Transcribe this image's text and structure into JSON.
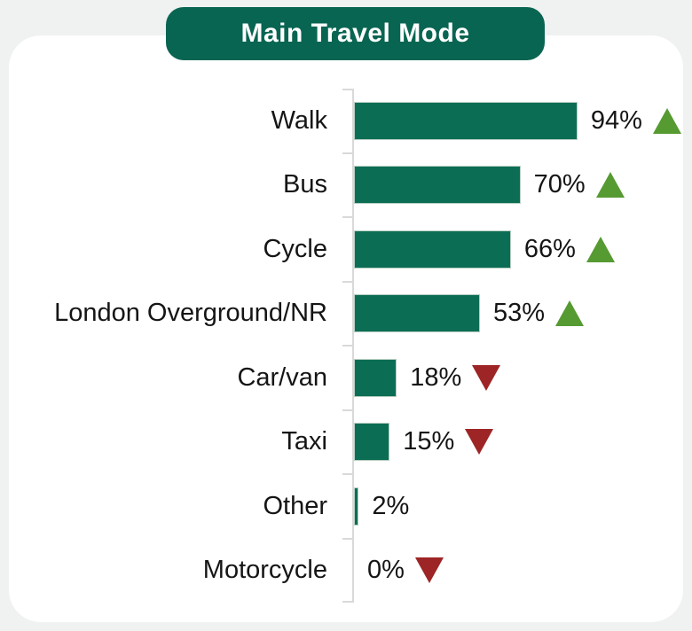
{
  "page": {
    "background_color": "#f0f1f1",
    "card_color": "#ffffff"
  },
  "title": {
    "label": "Main Travel Mode",
    "badge_color": "#086552",
    "text_color": "#ffffff"
  },
  "chart_data": {
    "type": "bar",
    "orientation": "horizontal",
    "title": "Main Travel Mode",
    "categories": [
      "Walk",
      "Bus",
      "Cycle",
      "London Overground/NR",
      "Car/van",
      "Taxi",
      "Other",
      "Motorcycle"
    ],
    "values": [
      94,
      70,
      66,
      53,
      18,
      15,
      2,
      0
    ],
    "value_labels": [
      "94%",
      "70%",
      "66%",
      "53%",
      "18%",
      "15%",
      "2%",
      "0%"
    ],
    "trends": [
      "up",
      "up",
      "up",
      "up",
      "down",
      "down",
      "none",
      "down"
    ],
    "xlim": [
      0,
      100
    ],
    "grid": false,
    "legend": false,
    "bar_color": "#0c6d55",
    "bar_border_color": "#b8cfc2",
    "up_arrow_color": "#569a32",
    "down_arrow_color": "#9d2525",
    "axis_color": "#d9d9d9",
    "label_color": "#151515"
  }
}
